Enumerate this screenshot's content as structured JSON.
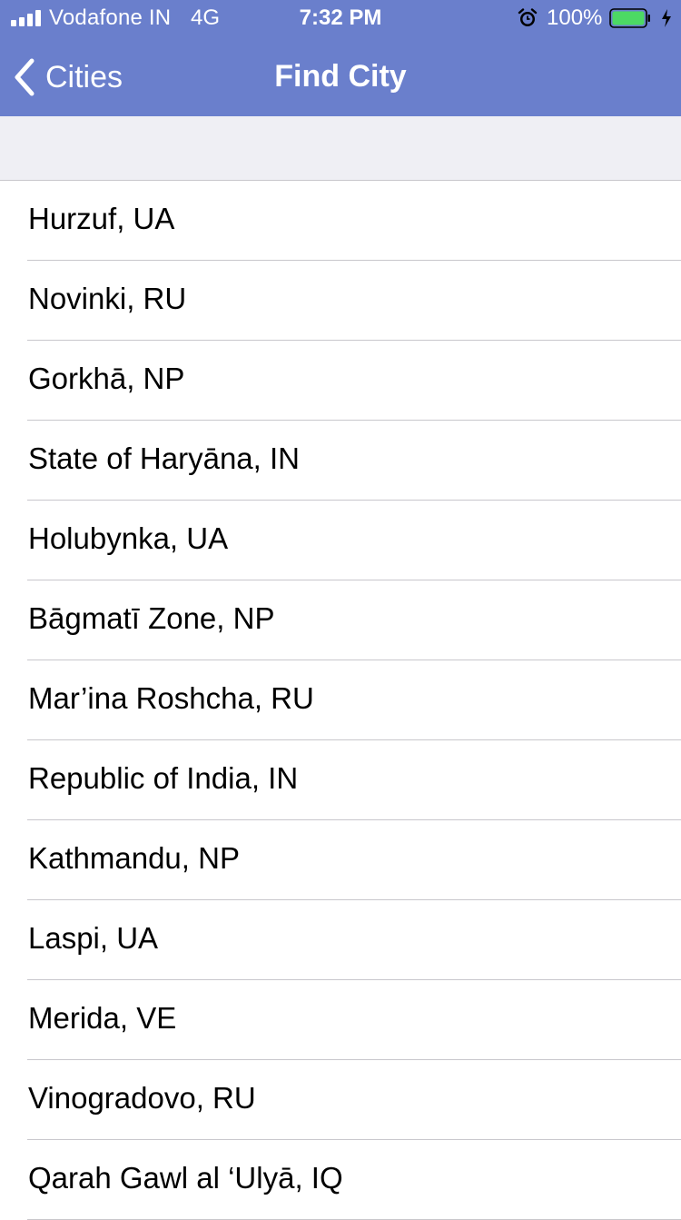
{
  "status_bar": {
    "carrier": "Vodafone IN",
    "network": "4G",
    "time": "7:32 PM",
    "battery_percent": "100%",
    "signal_bars": 4,
    "battery_level": 1.0,
    "icons": [
      "signal-icon",
      "alarm-icon",
      "battery-icon",
      "charging-icon"
    ]
  },
  "nav": {
    "back_label": "Cities",
    "title": "Find City",
    "back_icon": "chevron-left-icon"
  },
  "colors": {
    "header_bg": "#6a7fcc",
    "battery_fill": "#4cd964",
    "search_area_bg": "#efeff4",
    "separator": "#c8c7cc"
  },
  "cities": [
    {
      "name": "Hurzuf, UA"
    },
    {
      "name": "Novinki, RU"
    },
    {
      "name": "Gorkhā, NP"
    },
    {
      "name": "State of Haryāna, IN"
    },
    {
      "name": "Holubynka, UA"
    },
    {
      "name": "Bāgmatī Zone, NP"
    },
    {
      "name": "Mar’ina Roshcha, RU"
    },
    {
      "name": "Republic of India, IN"
    },
    {
      "name": "Kathmandu, NP"
    },
    {
      "name": "Laspi, UA"
    },
    {
      "name": "Merida, VE"
    },
    {
      "name": "Vinogradovo, RU"
    },
    {
      "name": "Qarah Gawl al ‘Ulyā, IQ"
    }
  ]
}
